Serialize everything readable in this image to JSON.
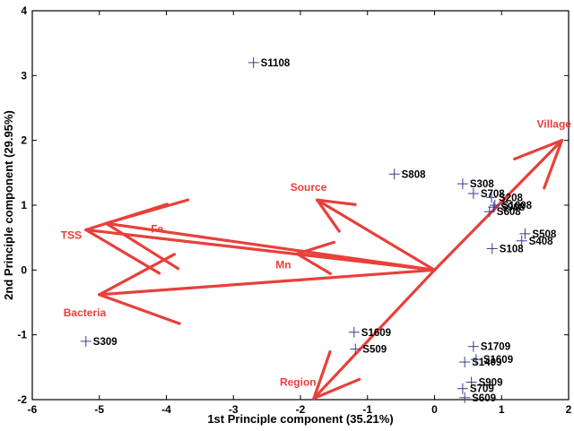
{
  "chart_data": {
    "type": "scatter",
    "subtype": "biplot",
    "title": "",
    "xlabel": "1st Principle  component  (35.21%)",
    "ylabel": "2nd  Principle  component  (29.95%)",
    "xlim": [
      -6,
      2
    ],
    "ylim": [
      -2,
      4
    ],
    "xticks": [
      "-6",
      "-5",
      "-4",
      "-3",
      "-2",
      "-1",
      "0",
      "1",
      "2"
    ],
    "yticks": [
      "-2",
      "-1",
      "0",
      "1",
      "2",
      "3",
      "4"
    ],
    "grid": false,
    "colors": {
      "points": "#3a3a8c",
      "vectors": "#e8403a",
      "vector_labels": "#e8403a",
      "axes": "#000000"
    },
    "points": [
      {
        "label": "S1108",
        "x": -2.7,
        "y": 3.2
      },
      {
        "label": "S808",
        "x": -0.6,
        "y": 1.48
      },
      {
        "label": "S308",
        "x": 0.42,
        "y": 1.33
      },
      {
        "label": "S208",
        "x": 0.85,
        "y": 1.12
      },
      {
        "label": "S708",
        "x": 0.58,
        "y": 1.18
      },
      {
        "label": "S1008",
        "x": 0.9,
        "y": 1.0
      },
      {
        "label": "S908",
        "x": 0.88,
        "y": 0.97
      },
      {
        "label": "S608",
        "x": 0.82,
        "y": 0.9
      },
      {
        "label": "S508",
        "x": 1.35,
        "y": 0.56
      },
      {
        "label": "S408",
        "x": 1.3,
        "y": 0.45
      },
      {
        "label": "S108",
        "x": 0.86,
        "y": 0.33
      },
      {
        "label": "S309",
        "x": -5.2,
        "y": -1.1
      },
      {
        "label": "S1609",
        "x": -1.2,
        "y": -0.96
      },
      {
        "label": "S509",
        "x": -1.18,
        "y": -1.22
      },
      {
        "label": "S1709",
        "x": 0.58,
        "y": -1.18
      },
      {
        "label": "S1409",
        "x": 0.45,
        "y": -1.42
      },
      {
        "label": "S1609",
        "x": 0.62,
        "y": -1.38
      },
      {
        "label": "S909",
        "x": 0.55,
        "y": -1.73
      },
      {
        "label": "S709",
        "x": 0.42,
        "y": -1.83
      },
      {
        "label": "S609",
        "x": 0.45,
        "y": -1.97
      }
    ],
    "vectors": [
      {
        "label": "Village",
        "x": 1.9,
        "y": 2.0
      },
      {
        "label": "Source",
        "x": -1.75,
        "y": 1.08
      },
      {
        "label": "Fe",
        "x": -4.9,
        "y": 0.72
      },
      {
        "label": "TSS",
        "x": -5.2,
        "y": 0.62
      },
      {
        "label": "Mn",
        "x": -2.05,
        "y": 0.25
      },
      {
        "label": "Bacteria",
        "x": -5.0,
        "y": -0.38
      },
      {
        "label": "Region",
        "x": -1.8,
        "y": -1.98
      }
    ]
  }
}
